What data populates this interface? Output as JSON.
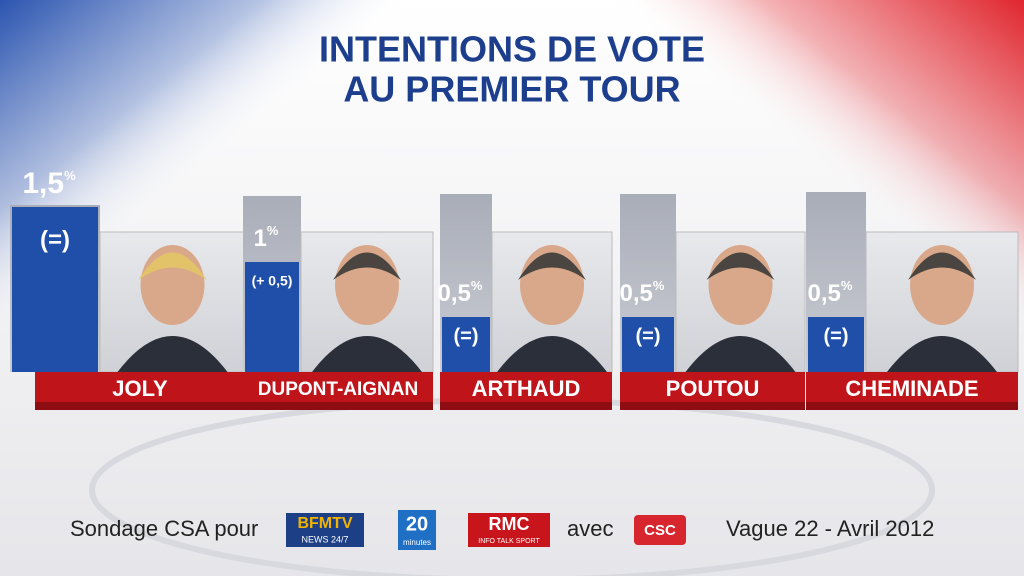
{
  "chart_data": {
    "type": "bar",
    "title": [
      "INTENTIONS DE VOTE",
      "AU PREMIER TOUR"
    ],
    "categories": [
      "JOLY",
      "DUPONT-AIGNAN",
      "ARTHAUD",
      "POUTOU",
      "CHEMINADE"
    ],
    "values": [
      1.5,
      1,
      0.5,
      0.5,
      0.5
    ],
    "value_labels": [
      "1,5",
      "1",
      "0,5",
      "0,5",
      "0,5"
    ],
    "unit": "%",
    "changes": [
      "(=)",
      "(+ 0,5)",
      "(=)",
      "(=)",
      "(=)"
    ],
    "color": "#1f4fa8",
    "plate_color": "#c0141b",
    "footer": {
      "source": "Sondage CSA pour",
      "logos": [
        "BFMTV",
        "NEWS 24/7",
        "20",
        "minutes",
        "RMC",
        "INFO TALK SPORT",
        "CSC"
      ],
      "with": "avec",
      "wave": "Vague 22 - Avril 2012"
    }
  }
}
